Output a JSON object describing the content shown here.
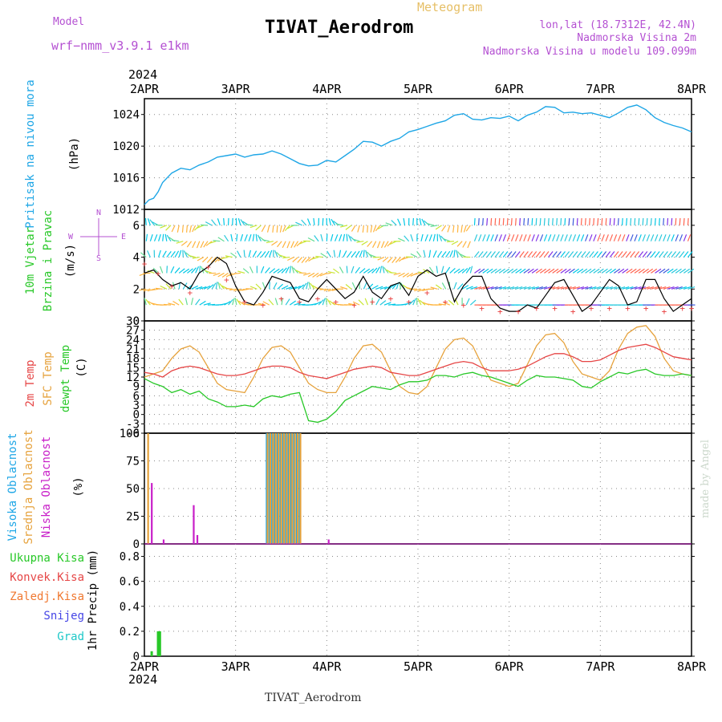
{
  "header": {
    "model_label": "Model",
    "model_name": "wrf−nmm_v3.9.1  e1km",
    "title": "TIVAT_Aerodrom",
    "subtitle": "Meteogram",
    "lonlat": "lon,lat (18.7312E, 42.4N)",
    "elev_station": "Nadmorska Visina 2m",
    "elev_model": "Nadmorska Visina u modelu 109.099m",
    "footer": "TIVAT_Aerodrom",
    "credit": "made by Angel"
  },
  "colors": {
    "pressure": "#1ea6e6",
    "wind_speed": "#000000",
    "wind_gust": "#e83c3c",
    "temp_2m": "#e64646",
    "temp_sfc": "#e6a23c",
    "dewpoint": "#28c828",
    "cloud_high": "#1ea6e6",
    "cloud_mid": "#e6a23c",
    "cloud_low": "#c81ec8",
    "precip_total": "#28c828",
    "precip_conv": "#e64646",
    "precip_strat": "#f07830",
    "snow": "#4646e6",
    "hail": "#1ec8c8",
    "model_text": "#b450d2",
    "grid": "#888888"
  },
  "time_axis": {
    "year": "2024",
    "ticks": [
      "2APR",
      "3APR",
      "4APR",
      "5APR",
      "6APR",
      "7APR",
      "8APR"
    ],
    "start_day": 2,
    "end_day": 8
  },
  "chart_data": [
    {
      "type": "line",
      "panel": "pressure",
      "ylabel": [
        "Pritisak na nivou mora",
        "(hPa)"
      ],
      "yticks": [
        1012,
        1016,
        1020,
        1024
      ],
      "ylim": [
        1012,
        1026
      ],
      "grid": true,
      "series": [
        {
          "name": "Pritisak na nivou mora",
          "x": [
            2.0,
            2.05,
            2.1,
            2.15,
            2.2,
            2.3,
            2.4,
            2.5,
            2.6,
            2.7,
            2.8,
            2.9,
            3.0,
            3.1,
            3.2,
            3.3,
            3.4,
            3.5,
            3.6,
            3.7,
            3.8,
            3.9,
            4.0,
            4.1,
            4.2,
            4.3,
            4.4,
            4.5,
            4.6,
            4.7,
            4.8,
            4.9,
            5.0,
            5.1,
            5.2,
            5.3,
            5.4,
            5.5,
            5.6,
            5.7,
            5.8,
            5.9,
            6.0,
            6.1,
            6.2,
            6.3,
            6.4,
            6.5,
            6.6,
            6.7,
            6.8,
            6.9,
            7.0,
            7.1,
            7.2,
            7.3,
            7.4,
            7.5,
            7.6,
            7.7,
            7.8,
            7.9,
            8.0
          ],
          "values": [
            1012.6,
            1013.2,
            1013.4,
            1014.2,
            1015.4,
            1016.6,
            1017.2,
            1017.0,
            1017.6,
            1018.0,
            1018.6,
            1018.8,
            1019.0,
            1018.6,
            1018.9,
            1019.0,
            1019.4,
            1019.0,
            1018.4,
            1017.8,
            1017.5,
            1017.6,
            1018.2,
            1018.0,
            1018.8,
            1019.6,
            1020.6,
            1020.5,
            1020.0,
            1020.6,
            1021.0,
            1021.8,
            1022.1,
            1022.5,
            1022.9,
            1023.2,
            1023.9,
            1024.1,
            1023.4,
            1023.3,
            1023.6,
            1023.5,
            1023.8,
            1023.2,
            1023.9,
            1024.3,
            1025.0,
            1024.9,
            1024.2,
            1024.3,
            1024.1,
            1024.2,
            1023.9,
            1023.6,
            1024.2,
            1024.9,
            1025.2,
            1024.6,
            1023.6,
            1023.0,
            1022.6,
            1022.3,
            1021.8
          ]
        }
      ]
    },
    {
      "type": "line",
      "panel": "wind",
      "ylabel": [
        "10m Vjetar",
        "Brzina i Pravac",
        "(m/s)"
      ],
      "compass": [
        "N",
        "W",
        "E",
        "S"
      ],
      "yticks": [
        0,
        2,
        4,
        6
      ],
      "ylim": [
        0,
        7
      ],
      "grid": true,
      "series": [
        {
          "name": "Brzina",
          "x": [
            2.0,
            2.1,
            2.2,
            2.3,
            2.4,
            2.5,
            2.6,
            2.7,
            2.8,
            2.9,
            3.0,
            3.1,
            3.2,
            3.3,
            3.4,
            3.5,
            3.6,
            3.7,
            3.8,
            3.9,
            4.0,
            4.1,
            4.2,
            4.3,
            4.4,
            4.5,
            4.6,
            4.7,
            4.8,
            4.9,
            5.0,
            5.1,
            5.2,
            5.3,
            5.4,
            5.5,
            5.6,
            5.7,
            5.8,
            5.9,
            6.0,
            6.1,
            6.2,
            6.3,
            6.4,
            6.5,
            6.6,
            6.7,
            6.8,
            6.9,
            7.0,
            7.1,
            7.2,
            7.3,
            7.4,
            7.5,
            7.6,
            7.7,
            7.8,
            7.9,
            8.0
          ],
          "values": [
            3.0,
            3.2,
            2.6,
            2.2,
            2.4,
            2.0,
            3.0,
            3.4,
            4.0,
            3.6,
            2.2,
            1.2,
            1.0,
            1.8,
            2.8,
            2.6,
            2.4,
            1.4,
            1.2,
            2.0,
            2.6,
            2.0,
            1.4,
            1.8,
            2.8,
            1.8,
            1.4,
            2.2,
            2.4,
            1.6,
            2.8,
            3.2,
            2.8,
            3.0,
            1.2,
            2.2,
            2.8,
            2.8,
            1.4,
            0.8,
            0.6,
            0.6,
            1.0,
            0.8,
            1.6,
            2.4,
            2.6,
            1.6,
            0.6,
            1.0,
            1.8,
            2.6,
            2.2,
            1.0,
            1.2,
            2.6,
            2.6,
            1.4,
            0.6,
            1.0,
            1.4
          ]
        },
        {
          "name": "Udar",
          "x": [
            2.0,
            2.15,
            2.3,
            2.5,
            2.7,
            2.9,
            3.1,
            3.3,
            3.5,
            3.7,
            3.9,
            4.1,
            4.3,
            4.5,
            4.7,
            4.9,
            5.1,
            5.3,
            5.5,
            5.7,
            5.9,
            6.1,
            6.3,
            6.5,
            6.7,
            6.9,
            7.1,
            7.3,
            7.5,
            7.7,
            7.9,
            8.0
          ],
          "values": [
            3.6,
            3.0,
            2.2,
            1.8,
            3.4,
            2.6,
            1.2,
            1.0,
            1.4,
            1.2,
            1.4,
            1.2,
            1.0,
            1.2,
            1.4,
            1.2,
            1.8,
            1.2,
            1.0,
            0.8,
            0.6,
            0.6,
            0.8,
            0.8,
            0.6,
            0.8,
            0.8,
            0.8,
            0.8,
            0.6,
            0.8,
            0.8
          ]
        }
      ]
    },
    {
      "type": "line",
      "panel": "temperature",
      "ylabel": [
        "2m Temp",
        "SFC Temp",
        "dewpt Temp",
        "(C)"
      ],
      "yticks": [
        -6,
        -3,
        0,
        3,
        6,
        9,
        12,
        15,
        18,
        21,
        24,
        27,
        30
      ],
      "ylim": [
        -6,
        30
      ],
      "grid": true,
      "series": [
        {
          "name": "2m Temp",
          "x": [
            2.0,
            2.1,
            2.2,
            2.3,
            2.4,
            2.5,
            2.6,
            2.7,
            2.8,
            2.9,
            3.0,
            3.1,
            3.2,
            3.3,
            3.4,
            3.5,
            3.6,
            3.7,
            3.8,
            3.9,
            4.0,
            4.1,
            4.2,
            4.3,
            4.4,
            4.5,
            4.6,
            4.7,
            4.8,
            4.9,
            5.0,
            5.1,
            5.2,
            5.3,
            5.4,
            5.5,
            5.6,
            5.7,
            5.8,
            5.9,
            6.0,
            6.1,
            6.2,
            6.3,
            6.4,
            6.5,
            6.6,
            6.7,
            6.8,
            6.9,
            7.0,
            7.1,
            7.2,
            7.3,
            7.4,
            7.5,
            7.6,
            7.7,
            7.8,
            7.9,
            8.0
          ],
          "values": [
            13.5,
            13.0,
            12.0,
            14.0,
            15.0,
            15.5,
            15.0,
            14.0,
            13.0,
            12.5,
            12.5,
            13.0,
            14.0,
            15.0,
            15.5,
            15.5,
            15.0,
            13.5,
            12.5,
            12.0,
            11.5,
            12.5,
            13.5,
            14.5,
            15.0,
            15.5,
            15.0,
            13.5,
            13.0,
            12.5,
            12.5,
            13.5,
            14.5,
            15.5,
            16.5,
            17.0,
            16.5,
            15.0,
            14.0,
            14.0,
            14.0,
            14.5,
            15.5,
            17.0,
            18.5,
            19.5,
            19.5,
            18.5,
            17.0,
            17.0,
            17.5,
            19.0,
            20.5,
            21.5,
            22.0,
            22.5,
            21.5,
            20.0,
            18.5,
            18.0,
            17.5
          ]
        },
        {
          "name": "SFC Temp",
          "x": [
            2.0,
            2.1,
            2.2,
            2.3,
            2.4,
            2.5,
            2.6,
            2.7,
            2.8,
            2.9,
            3.0,
            3.1,
            3.2,
            3.3,
            3.4,
            3.5,
            3.6,
            3.7,
            3.8,
            3.9,
            4.0,
            4.1,
            4.2,
            4.3,
            4.4,
            4.5,
            4.6,
            4.7,
            4.8,
            4.9,
            5.0,
            5.1,
            5.2,
            5.3,
            5.4,
            5.5,
            5.6,
            5.7,
            5.8,
            5.9,
            6.0,
            6.1,
            6.2,
            6.3,
            6.4,
            6.5,
            6.6,
            6.7,
            6.8,
            6.9,
            7.0,
            7.1,
            7.2,
            7.3,
            7.4,
            7.5,
            7.6,
            7.7,
            7.8,
            7.9,
            8.0
          ],
          "values": [
            12.0,
            13.0,
            14.0,
            18.0,
            21.0,
            22.0,
            20.0,
            15.0,
            10.0,
            8.0,
            7.5,
            7.0,
            12.0,
            18.0,
            21.5,
            22.0,
            20.0,
            15.0,
            10.0,
            8.0,
            7.0,
            7.0,
            12.0,
            18.0,
            22.0,
            22.5,
            20.0,
            14.0,
            9.0,
            7.0,
            6.5,
            9.0,
            15.0,
            21.0,
            24.0,
            24.5,
            22.0,
            16.0,
            11.0,
            10.0,
            9.0,
            10.0,
            16.0,
            22.0,
            25.5,
            26.0,
            23.0,
            17.0,
            13.0,
            12.0,
            11.0,
            14.0,
            21.0,
            26.0,
            28.0,
            28.5,
            25.0,
            18.0,
            14.0,
            13.0,
            12.5
          ]
        },
        {
          "name": "dewpt Temp",
          "x": [
            2.0,
            2.1,
            2.2,
            2.3,
            2.4,
            2.5,
            2.6,
            2.7,
            2.8,
            2.9,
            3.0,
            3.1,
            3.2,
            3.3,
            3.4,
            3.5,
            3.6,
            3.7,
            3.8,
            3.9,
            4.0,
            4.1,
            4.2,
            4.3,
            4.4,
            4.5,
            4.6,
            4.7,
            4.8,
            4.9,
            5.0,
            5.1,
            5.2,
            5.3,
            5.4,
            5.5,
            5.6,
            5.7,
            5.8,
            5.9,
            6.0,
            6.1,
            6.2,
            6.3,
            6.4,
            6.5,
            6.6,
            6.7,
            6.8,
            6.9,
            7.0,
            7.1,
            7.2,
            7.3,
            7.4,
            7.5,
            7.6,
            7.7,
            7.8,
            7.9,
            8.0
          ],
          "values": [
            11.5,
            10.0,
            9.0,
            7.0,
            8.0,
            6.5,
            7.5,
            5.0,
            4.0,
            2.5,
            2.5,
            3.0,
            2.5,
            5.0,
            6.0,
            5.5,
            6.5,
            7.0,
            -2.0,
            -2.5,
            -1.5,
            1.0,
            4.5,
            6.0,
            7.5,
            9.0,
            8.5,
            8.0,
            9.5,
            10.5,
            10.5,
            11.0,
            12.5,
            12.5,
            12.0,
            13.0,
            13.5,
            12.5,
            12.0,
            11.0,
            10.0,
            9.0,
            11.0,
            12.5,
            12.0,
            12.0,
            11.5,
            11.0,
            9.0,
            8.5,
            10.5,
            12.0,
            13.5,
            13.0,
            14.0,
            14.5,
            13.0,
            12.5,
            12.5,
            13.0,
            12.5
          ]
        }
      ]
    },
    {
      "type": "bar",
      "panel": "cloud",
      "ylabel": [
        "Visoka Oblacnost",
        "Srednja Oblacnost",
        "Niska Oblacnost",
        "(%)"
      ],
      "yticks": [
        0,
        25,
        50,
        75,
        100
      ],
      "ylim": [
        0,
        100
      ],
      "grid": true,
      "series": [
        {
          "name": "Visoka Oblacnost",
          "x": [
            3.34,
            3.37,
            3.4,
            3.43,
            3.46,
            3.49,
            3.52,
            3.55,
            3.58,
            3.61,
            3.64,
            3.67,
            3.7
          ],
          "values": [
            100,
            100,
            100,
            100,
            100,
            100,
            100,
            100,
            100,
            100,
            100,
            100,
            100
          ]
        },
        {
          "name": "Srednja Oblacnost",
          "x": [
            2.04,
            3.35,
            3.38,
            3.41,
            3.44,
            3.47,
            3.5,
            3.53,
            3.56,
            3.59,
            3.62,
            3.65,
            3.68,
            3.71
          ],
          "values": [
            100,
            100,
            100,
            100,
            100,
            100,
            100,
            100,
            100,
            100,
            100,
            100,
            100,
            100
          ]
        },
        {
          "name": "Niska Oblacnost",
          "x": [
            2.08,
            2.21,
            2.54,
            2.58,
            4.02
          ],
          "values": [
            55,
            4,
            35,
            8,
            4
          ]
        }
      ]
    },
    {
      "type": "bar",
      "panel": "precip",
      "ylabel": [
        "1hr Precip (mm)"
      ],
      "legend": [
        "Ukupna Kisa",
        "Konvek.Kisa",
        "Zaledj.Kisa",
        "Snijeg",
        "Grad"
      ],
      "yticks": [
        0,
        0.2,
        0.4,
        0.6,
        0.8
      ],
      "ylim": [
        0,
        0.9
      ],
      "grid": true,
      "series": [
        {
          "name": "Ukupna Kisa",
          "x": [
            2.08,
            2.15,
            2.17
          ],
          "values": [
            0.04,
            0.2,
            0.2
          ]
        }
      ]
    }
  ]
}
